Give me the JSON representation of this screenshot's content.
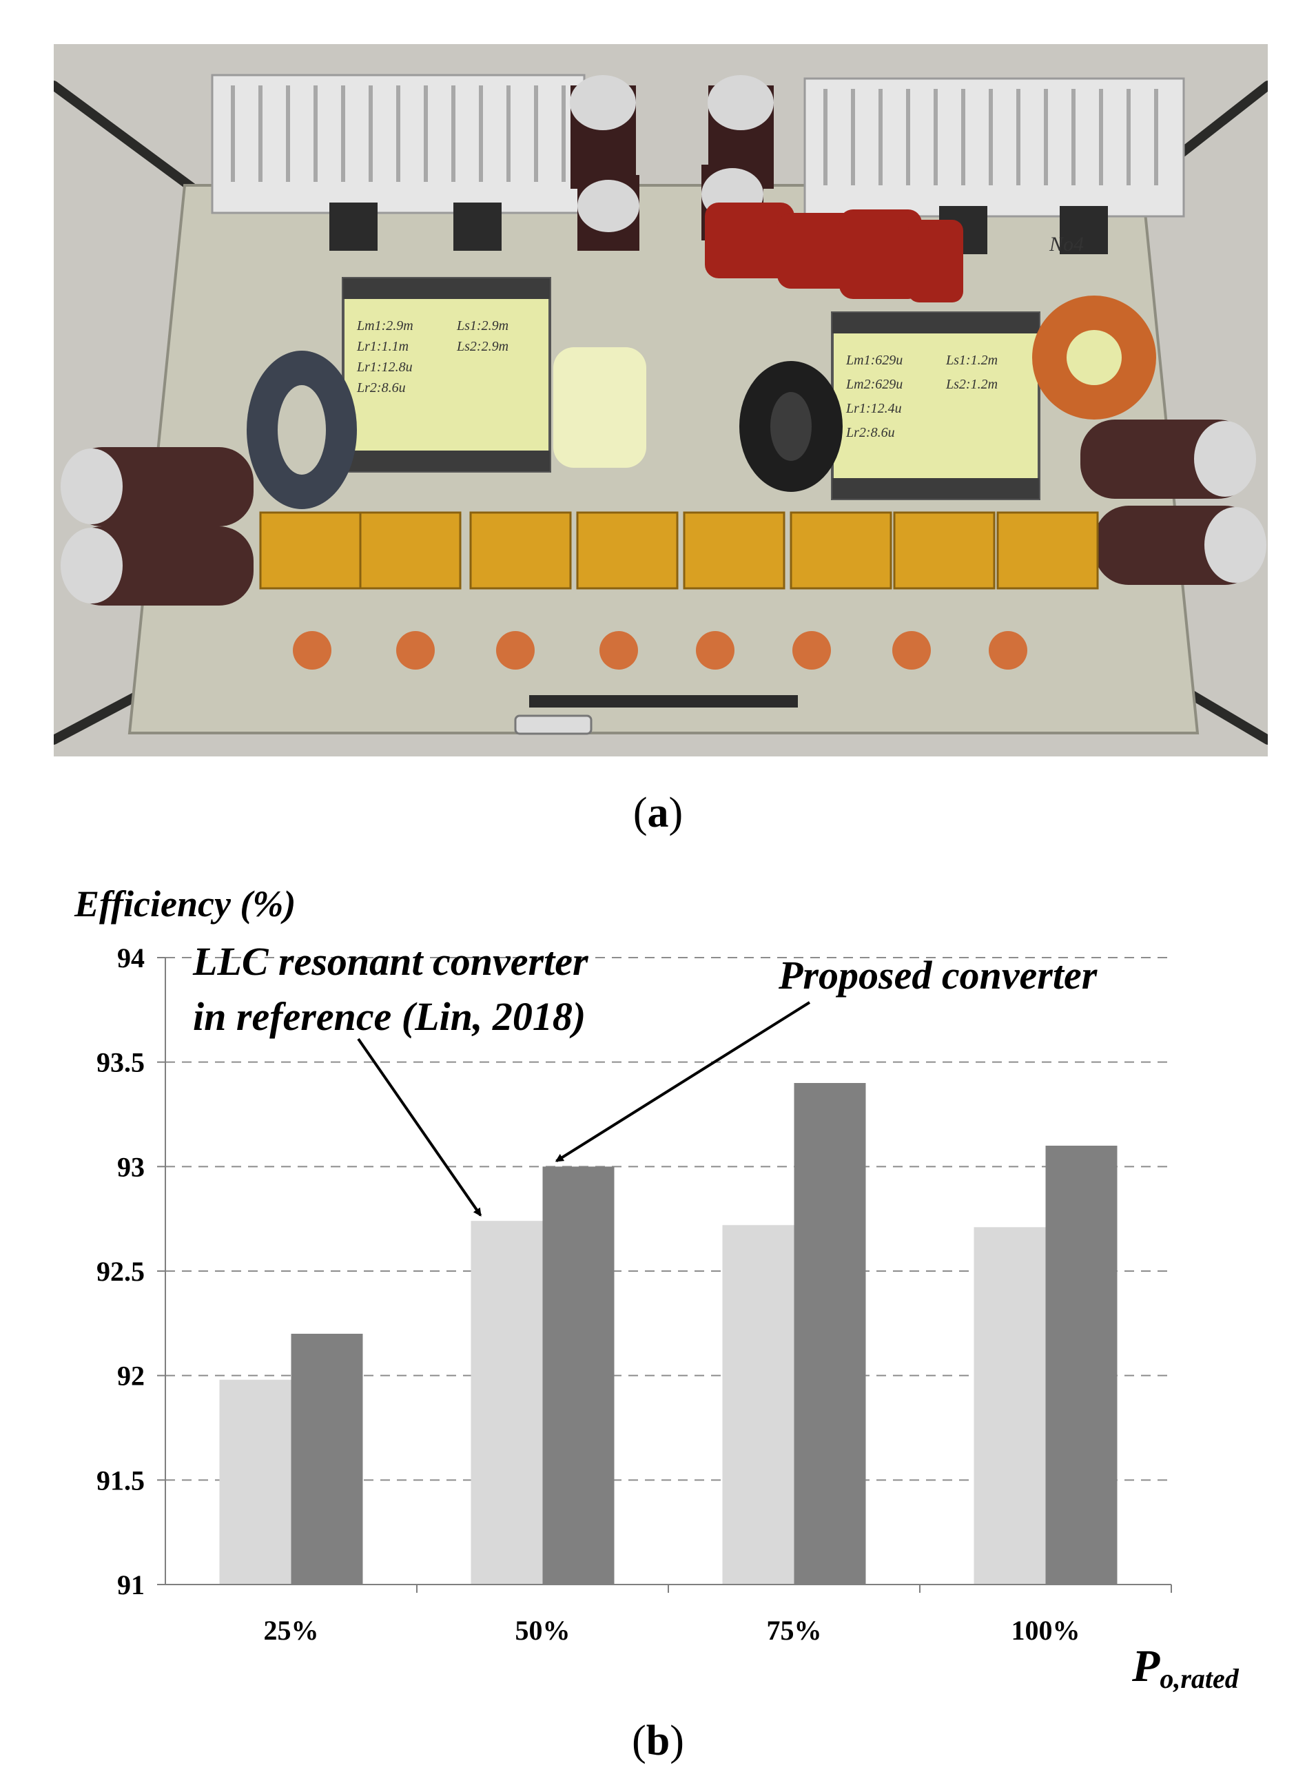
{
  "figure": {
    "caption_a": {
      "open": "(",
      "letter": "a",
      "close": ")"
    },
    "caption_b": {
      "open": "(",
      "letter": "b",
      "close": ")"
    },
    "photo_labels": {
      "board_tag": "No4",
      "transformer_left_notes": [
        "Lm1:2.9m",
        "Lr1:1.1m",
        "Lr1:12.8u",
        "Lr2:8.6u",
        "Ls1:2.9m",
        "Ls2:2.9m"
      ],
      "transformer_right_notes": [
        "Lm1:629u",
        "Lm2:629u",
        "Lr1:12.4u",
        "Lr2:8.6u",
        "Ls1:1.2m",
        "Ls2:1.2m"
      ]
    }
  },
  "colors": {
    "bar_reference": "#d9d9d9",
    "bar_proposed": "#808080",
    "grid": "#8c8c8c",
    "axis": "#7f7f7f"
  },
  "chart_data": {
    "type": "bar",
    "ylabel": "Efficiency (%)",
    "xlabel_main": "P",
    "xlabel_sub": "o,rated",
    "categories": [
      "25%",
      "50%",
      "75%",
      "100%"
    ],
    "ylim": [
      91,
      94
    ],
    "yticks": [
      "91",
      "91.5",
      "92",
      "92.5",
      "93",
      "93.5",
      "94"
    ],
    "grid": "horizontal dashed",
    "series": [
      {
        "name": "LLC resonant converter in reference (Lin, 2018)",
        "values": [
          91.98,
          92.74,
          92.72,
          92.71
        ]
      },
      {
        "name": "Proposed converter",
        "values": [
          92.2,
          93.0,
          93.4,
          93.1
        ]
      }
    ],
    "annotations": [
      {
        "lines": [
          "LLC resonant converter",
          "in reference (Lin, 2018)"
        ],
        "points_to": "LLC resonant converter in reference (Lin, 2018)"
      },
      {
        "lines": [
          "Proposed converter"
        ],
        "points_to": "Proposed converter"
      }
    ]
  }
}
